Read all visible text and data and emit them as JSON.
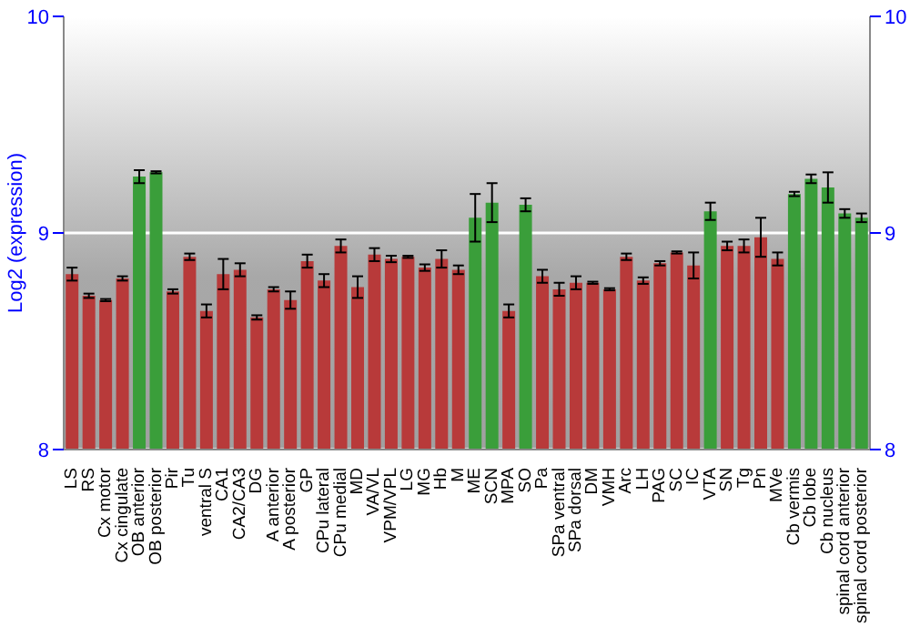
{
  "chart_data": {
    "type": "bar",
    "ylabel": "Log2 (expression)",
    "categories": [
      "LS",
      "RS",
      "Cx motor",
      "Cx cingulate",
      "OB anterior",
      "OB posterior",
      "Pir",
      "Tu",
      "ventral S",
      "CA1",
      "CA2/CA3",
      "DG",
      "A anterior",
      "A posterior",
      "GP",
      "CPu lateral",
      "CPu medial",
      "MD",
      "VA/VL",
      "VPM/VPL",
      "LG",
      "MG",
      "Hb",
      "M",
      "ME",
      "SCN",
      "MPA",
      "SO",
      "Pa",
      "SPa ventral",
      "SPa dorsal",
      "DM",
      "VMH",
      "Arc",
      "LH",
      "PAG",
      "SC",
      "IC",
      "VTA",
      "SN",
      "Tg",
      "Pn",
      "MVe",
      "Cb vermis",
      "Cb lobe",
      "Cb nucleus",
      "spinal cord anterior",
      "spinal cord posterior"
    ],
    "values": [
      8.81,
      8.71,
      8.69,
      8.79,
      9.26,
      9.28,
      8.73,
      8.89,
      8.64,
      8.81,
      8.83,
      8.61,
      8.74,
      8.69,
      8.87,
      8.78,
      8.94,
      8.75,
      8.9,
      8.88,
      8.89,
      8.84,
      8.88,
      8.83,
      9.07,
      9.14,
      8.64,
      9.13,
      8.8,
      8.74,
      8.77,
      8.77,
      8.74,
      8.89,
      8.78,
      8.86,
      8.91,
      8.85,
      9.1,
      8.94,
      8.94,
      8.98,
      8.88,
      9.18,
      9.25,
      9.21,
      9.09,
      9.07
    ],
    "errors": [
      0.03,
      0.01,
      0.005,
      0.01,
      0.03,
      0.005,
      0.01,
      0.015,
      0.03,
      0.07,
      0.03,
      0.01,
      0.01,
      0.04,
      0.03,
      0.03,
      0.03,
      0.05,
      0.03,
      0.015,
      0.005,
      0.015,
      0.04,
      0.02,
      0.11,
      0.09,
      0.03,
      0.03,
      0.03,
      0.03,
      0.03,
      0.005,
      0.005,
      0.015,
      0.015,
      0.01,
      0.005,
      0.06,
      0.04,
      0.02,
      0.03,
      0.09,
      0.03,
      0.01,
      0.02,
      0.07,
      0.02,
      0.02
    ],
    "colors": [
      "#b83a3a",
      "#b83a3a",
      "#b83a3a",
      "#b83a3a",
      "#3a9e3a",
      "#3a9e3a",
      "#b83a3a",
      "#b83a3a",
      "#b83a3a",
      "#b83a3a",
      "#b83a3a",
      "#b83a3a",
      "#b83a3a",
      "#b83a3a",
      "#b83a3a",
      "#b83a3a",
      "#b83a3a",
      "#b83a3a",
      "#b83a3a",
      "#b83a3a",
      "#b83a3a",
      "#b83a3a",
      "#b83a3a",
      "#b83a3a",
      "#3a9e3a",
      "#3a9e3a",
      "#b83a3a",
      "#3a9e3a",
      "#b83a3a",
      "#b83a3a",
      "#b83a3a",
      "#b83a3a",
      "#b83a3a",
      "#b83a3a",
      "#b83a3a",
      "#b83a3a",
      "#b83a3a",
      "#b83a3a",
      "#3a9e3a",
      "#b83a3a",
      "#b83a3a",
      "#b83a3a",
      "#b83a3a",
      "#3a9e3a",
      "#3a9e3a",
      "#3a9e3a",
      "#3a9e3a",
      "#3a9e3a"
    ],
    "ylim": [
      8,
      10
    ],
    "yticks": [
      8,
      9,
      10
    ],
    "y2lim": [
      8,
      10
    ],
    "y2ticks": [
      8,
      9,
      10
    ],
    "grid": "y"
  }
}
